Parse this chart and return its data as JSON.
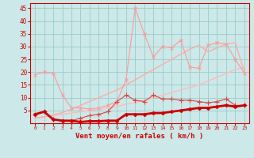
{
  "x": [
    0,
    1,
    2,
    3,
    4,
    5,
    6,
    7,
    8,
    9,
    10,
    11,
    12,
    13,
    14,
    15,
    16,
    17,
    18,
    19,
    20,
    21,
    22,
    23
  ],
  "bg_color": "#cce8e8",
  "grid_color": "#99cccc",
  "xlabel": "Vent moyen/en rafales ( km/h )",
  "ylim": [
    0,
    47
  ],
  "xlim": [
    -0.5,
    23.5
  ],
  "yticks": [
    5,
    10,
    15,
    20,
    25,
    30,
    35,
    40,
    45
  ],
  "ytick_labels": [
    "5",
    "10",
    "15",
    "20",
    "25",
    "30",
    "35",
    "40",
    "45"
  ],
  "line_straight1": {
    "y": [
      2.0,
      2.5,
      3.0,
      3.5,
      4.0,
      4.5,
      5.0,
      5.5,
      6.0,
      6.5,
      7.5,
      8.0,
      9.0,
      10.0,
      11.0,
      12.0,
      13.0,
      14.0,
      15.0,
      16.5,
      18.0,
      19.5,
      21.0,
      22.0
    ],
    "color": "#ffbbbb",
    "lw": 1.0
  },
  "line_straight2": {
    "y": [
      2.0,
      2.5,
      3.2,
      4.2,
      5.5,
      7.0,
      8.5,
      10.0,
      11.5,
      13.0,
      15.0,
      17.0,
      19.0,
      21.0,
      23.0,
      25.0,
      27.0,
      29.0,
      30.5,
      28.0,
      29.5,
      31.0,
      31.5,
      20.0
    ],
    "color": "#ffaaaa",
    "lw": 1.0
  },
  "line_jagged_light": {
    "y": [
      19.0,
      20.0,
      19.5,
      11.0,
      6.0,
      6.0,
      5.5,
      6.0,
      7.0,
      8.5,
      17.0,
      45.0,
      35.0,
      26.0,
      30.0,
      29.5,
      32.5,
      22.0,
      21.5,
      30.5,
      31.5,
      31.0,
      25.0,
      19.5
    ],
    "color": "#ff9999",
    "lw": 0.8,
    "marker": "x",
    "ms": 3
  },
  "line_medium": {
    "y": [
      3.5,
      4.5,
      1.5,
      1.0,
      1.0,
      2.0,
      3.0,
      3.5,
      4.5,
      8.5,
      11.0,
      9.0,
      8.5,
      11.0,
      9.5,
      9.5,
      9.0,
      9.0,
      8.5,
      8.0,
      8.5,
      9.5,
      7.0,
      7.0
    ],
    "color": "#dd4444",
    "lw": 0.8,
    "marker": "+",
    "ms": 4
  },
  "line_thick": {
    "y": [
      3.5,
      4.5,
      1.5,
      1.0,
      1.0,
      0.5,
      0.8,
      0.8,
      1.0,
      1.0,
      3.5,
      3.5,
      3.5,
      4.0,
      4.0,
      4.5,
      5.0,
      5.5,
      6.0,
      6.0,
      6.5,
      7.0,
      6.5,
      7.0
    ],
    "color": "#cc0000",
    "lw": 2.0,
    "marker": "D",
    "ms": 2
  }
}
